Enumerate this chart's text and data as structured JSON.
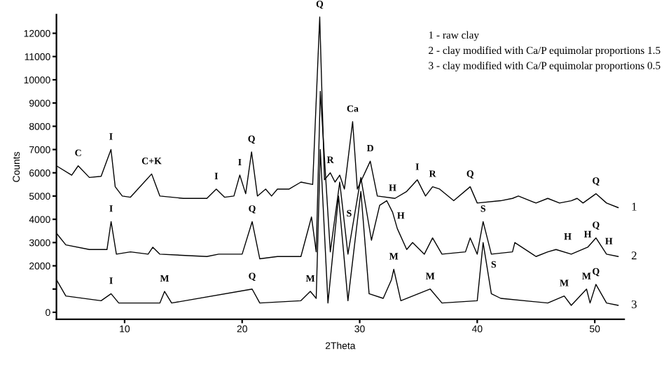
{
  "chart_data": {
    "type": "line",
    "xlabel": "2Theta",
    "ylabel": "Counts",
    "xlim": [
      4.2,
      52.5
    ],
    "ylim": [
      -300,
      12800
    ],
    "xticks": [
      10,
      20,
      30,
      40,
      50
    ],
    "yticks": [
      0,
      {
        "value": 1000,
        "label": null
      },
      2000,
      3000,
      4000,
      5000,
      6000,
      7000,
      8000,
      9000,
      10000,
      11000,
      12000
    ],
    "grid": false,
    "legend": false,
    "marker": "none",
    "line_style": "solid",
    "series": [
      {
        "name": "1",
        "color": "#000000",
        "x": [
          4.2,
          5.5,
          6.05,
          7,
          8,
          8.84,
          9.2,
          9.8,
          10.5,
          12.3,
          13,
          15,
          17,
          17.8,
          18.5,
          19.3,
          19.8,
          20.3,
          20.8,
          21.3,
          22,
          22.5,
          23,
          24,
          25,
          26,
          26.6,
          27,
          27.5,
          27.9,
          28.3,
          28.7,
          29.4,
          29.8,
          30.9,
          31.5,
          33,
          34,
          34.9,
          35.6,
          36.2,
          36.8,
          38,
          39.4,
          40,
          42,
          43,
          43.5,
          45,
          46,
          47,
          48,
          48.5,
          49,
          50.1,
          51,
          52
        ],
        "values": [
          6300,
          5900,
          6300,
          5800,
          5850,
          7000,
          5400,
          5000,
          4950,
          5950,
          5000,
          4900,
          4900,
          5300,
          4950,
          5000,
          5900,
          5100,
          6900,
          5000,
          5300,
          5000,
          5300,
          5300,
          5600,
          5500,
          12700,
          5700,
          6000,
          5600,
          5900,
          5300,
          8200,
          5300,
          6500,
          5000,
          4900,
          5200,
          5700,
          5000,
          5400,
          5300,
          4800,
          5400,
          4700,
          4800,
          4900,
          5000,
          4700,
          4900,
          4700,
          4800,
          4900,
          4700,
          5100,
          4700,
          4500
        ]
      },
      {
        "name": "2",
        "color": "#000000",
        "x": [
          4.2,
          5,
          7,
          8.5,
          8.85,
          9.3,
          10.5,
          12,
          12.4,
          13,
          17,
          18,
          20,
          20.85,
          21.5,
          23,
          25,
          25.9,
          26.3,
          26.65,
          27.5,
          28.3,
          29,
          30.1,
          31,
          31.7,
          32.3,
          32.8,
          33.2,
          34,
          34.5,
          35.5,
          36.2,
          37,
          39,
          39.4,
          40,
          40.5,
          41.2,
          43,
          43.2,
          45,
          46,
          46.7,
          48,
          49.4,
          50.1,
          51,
          52
        ],
        "values": [
          3400,
          2900,
          2700,
          2700,
          3900,
          2500,
          2600,
          2500,
          2800,
          2500,
          2400,
          2500,
          2500,
          3900,
          2300,
          2400,
          2400,
          4100,
          2600,
          9500,
          2600,
          5600,
          2500,
          5800,
          3100,
          4600,
          4800,
          4300,
          3600,
          2700,
          3000,
          2500,
          3200,
          2500,
          2600,
          3200,
          2500,
          3900,
          2500,
          2600,
          3000,
          2400,
          2600,
          2700,
          2500,
          2800,
          3200,
          2500,
          2400
        ]
      },
      {
        "name": "3",
        "color": "#000000",
        "x": [
          4.2,
          5,
          8,
          8.85,
          9.5,
          13,
          13.4,
          14,
          20.85,
          21.5,
          25,
          25.8,
          26.3,
          26.65,
          27.3,
          28.2,
          29,
          30.1,
          30.8,
          32,
          32.7,
          32.9,
          33.5,
          36,
          37,
          40,
          40.5,
          41.2,
          42,
          46,
          47.4,
          48,
          49.3,
          49.6,
          50.1,
          51,
          52
        ],
        "values": [
          1400,
          700,
          500,
          800,
          400,
          400,
          900,
          400,
          1000,
          400,
          500,
          900,
          600,
          7000,
          400,
          5000,
          500,
          5200,
          800,
          600,
          1400,
          1850,
          500,
          1000,
          400,
          500,
          3000,
          800,
          600,
          400,
          700,
          300,
          1000,
          400,
          1200,
          400,
          300
        ]
      }
    ],
    "annotations": [
      "1 - raw clay",
      "2 - clay modified with Ca/P equimolar proportions 1.5",
      "3 - clay modified with Ca/P equimolar proportions 0.5",
      {
        "text": "C",
        "x": 6.05,
        "y": 6300
      },
      {
        "text": "I",
        "x": 8.84,
        "y": 7000
      },
      {
        "text": "C+K",
        "x": 12.3,
        "y": 5950
      },
      {
        "text": "I",
        "x": 17.8,
        "y": 5300
      },
      {
        "text": "I",
        "x": 19.8,
        "y": 5900
      },
      {
        "text": "Q",
        "x": 20.8,
        "y": 6900
      },
      {
        "text": "Q",
        "x": 26.6,
        "y": 12700
      },
      {
        "text": "R",
        "x": 27.5,
        "y": 6000
      },
      {
        "text": "Ca",
        "x": 29.4,
        "y": 8200
      },
      {
        "text": "D",
        "x": 30.9,
        "y": 6500
      },
      {
        "text": "I",
        "x": 34.9,
        "y": 5700
      },
      {
        "text": "R",
        "x": 36.2,
        "y": 5400
      },
      {
        "text": "Q",
        "x": 39.4,
        "y": 5400
      },
      {
        "text": "Q",
        "x": 50.1,
        "y": 5100
      },
      {
        "text": "I",
        "x": 8.85,
        "y": 3900
      },
      {
        "text": "Q",
        "x": 20.85,
        "y": 3900
      },
      {
        "text": "S",
        "x": 29.1,
        "y": 3700
      },
      {
        "text": "H",
        "x": 32.8,
        "y": 4800
      },
      {
        "text": "H",
        "x": 33.5,
        "y": 3600
      },
      {
        "text": "S",
        "x": 40.5,
        "y": 3900
      },
      {
        "text": "H",
        "x": 47.7,
        "y": 2700
      },
      {
        "text": "H",
        "x": 49.4,
        "y": 2800
      },
      {
        "text": "Q",
        "x": 50.1,
        "y": 3200
      },
      {
        "text": "H",
        "x": 51.2,
        "y": 2500
      },
      {
        "text": "I",
        "x": 8.85,
        "y": 800
      },
      {
        "text": "M",
        "x": 13.4,
        "y": 900
      },
      {
        "text": "Q",
        "x": 20.85,
        "y": 1000
      },
      {
        "text": "M",
        "x": 25.8,
        "y": 900
      },
      {
        "text": "S",
        "x": 41.4,
        "y": 1500
      },
      {
        "text": "M",
        "x": 32.9,
        "y": 1850
      },
      {
        "text": "M",
        "x": 36.0,
        "y": 1000
      },
      {
        "text": "M",
        "x": 47.4,
        "y": 700
      },
      {
        "text": "M",
        "x": 49.3,
        "y": 1000
      },
      {
        "text": "Q",
        "x": 50.1,
        "y": 1200
      }
    ]
  }
}
